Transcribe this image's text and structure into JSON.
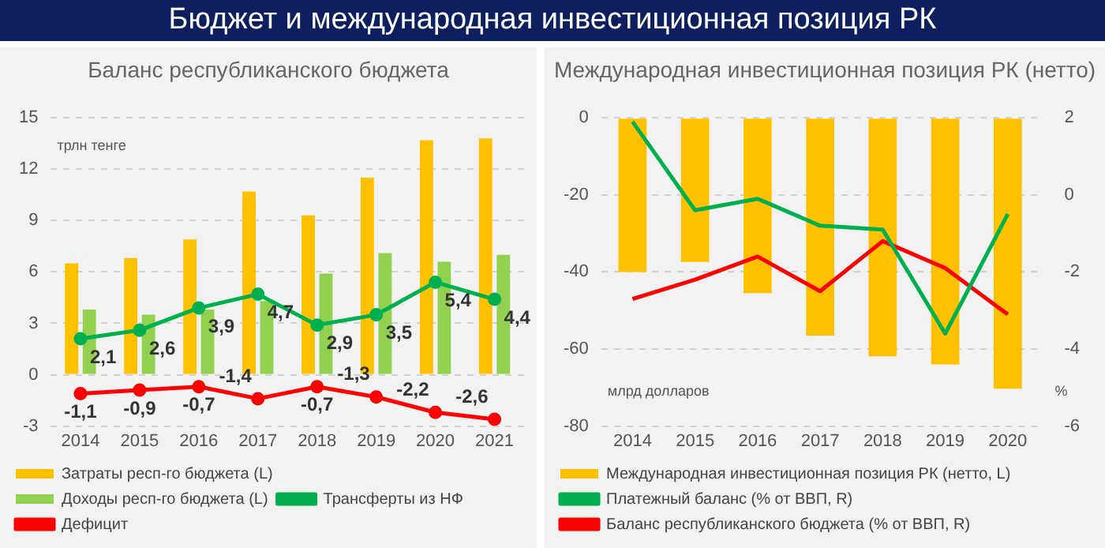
{
  "chart_data": [
    {
      "type": "bar",
      "title": "Баланс республиканского бюджета",
      "annotations": [
        "Бюджет и международная инвестиционная позиция РК"
      ],
      "ylabel": "трлн тенге",
      "categories": [
        "2014",
        "2015",
        "2016",
        "2017",
        "2018",
        "2019",
        "2020",
        "2021"
      ],
      "series": [
        {
          "name": "Затраты респ-го бюджета (L)",
          "color": "#ffc000",
          "values": [
            6.5,
            6.8,
            7.9,
            10.7,
            9.3,
            11.5,
            13.7,
            13.8
          ]
        },
        {
          "name": "Доходы респ-го бюджета (L)",
          "color": "#92d050",
          "values": [
            3.8,
            3.5,
            3.8,
            4.3,
            5.9,
            7.1,
            6.6,
            7.0
          ]
        },
        {
          "name": "Трансферты из НФ",
          "type": "line",
          "color": "#00b050",
          "marker": "circle",
          "values": [
            2.1,
            2.6,
            3.9,
            4.7,
            2.9,
            3.5,
            5.4,
            4.4
          ],
          "value_labels": [
            "2,1",
            "2,6",
            "3,9",
            "4,7",
            "2,9",
            "3,5",
            "5,4",
            "4,4"
          ]
        },
        {
          "name": "Дефицит",
          "type": "line",
          "color": "#ff0000",
          "marker": "circle",
          "values": [
            -1.1,
            -0.9,
            -0.7,
            -1.4,
            -0.7,
            -1.3,
            -2.2,
            -2.6
          ],
          "value_labels": [
            "-1,1",
            "-0,9",
            "-0,7",
            "-1,4",
            "-0,7",
            "-1,3",
            "-2,2",
            "-2,6"
          ]
        }
      ],
      "ylim": [
        -3,
        15
      ],
      "yticks": [
        -3,
        0,
        3,
        6,
        9,
        12,
        15
      ],
      "grid": "y",
      "legend": "bottom"
    },
    {
      "type": "bar",
      "title": "Международная инвестиционная позиция РК (нетто)",
      "ylabel": "млрд долларов",
      "y2label": "%",
      "categories": [
        "2014",
        "2015",
        "2016",
        "2017",
        "2018",
        "2019",
        "2020"
      ],
      "series": [
        {
          "name": "Международная инвестиционная позиция РК (нетто, L)",
          "color": "#ffc000",
          "values": [
            -40.0,
            -37.4,
            -45.5,
            -56.5,
            -61.9,
            -64.0,
            -70.3
          ]
        },
        {
          "name": "Платежный баланс (% от ВВП, R)",
          "type": "line",
          "axis": "y2",
          "color": "#00b050",
          "values": [
            1.9,
            -0.4,
            -0.1,
            -0.8,
            -0.9,
            -3.6,
            -0.5
          ]
        },
        {
          "name": "Баланс республиканского бюджета (% от ВВП, R)",
          "type": "line",
          "axis": "y2",
          "color": "#ff0000",
          "values": [
            -2.7,
            -2.2,
            -1.6,
            -2.5,
            -1.2,
            -1.9,
            -3.1
          ]
        }
      ],
      "ylim": [
        -80,
        0
      ],
      "yticks": [
        -80,
        -60,
        -40,
        -20,
        0
      ],
      "y2lim": [
        -6,
        2
      ],
      "y2ticks": [
        -6,
        -4,
        -2,
        0,
        2
      ],
      "grid": "y",
      "legend": "bottom"
    }
  ]
}
